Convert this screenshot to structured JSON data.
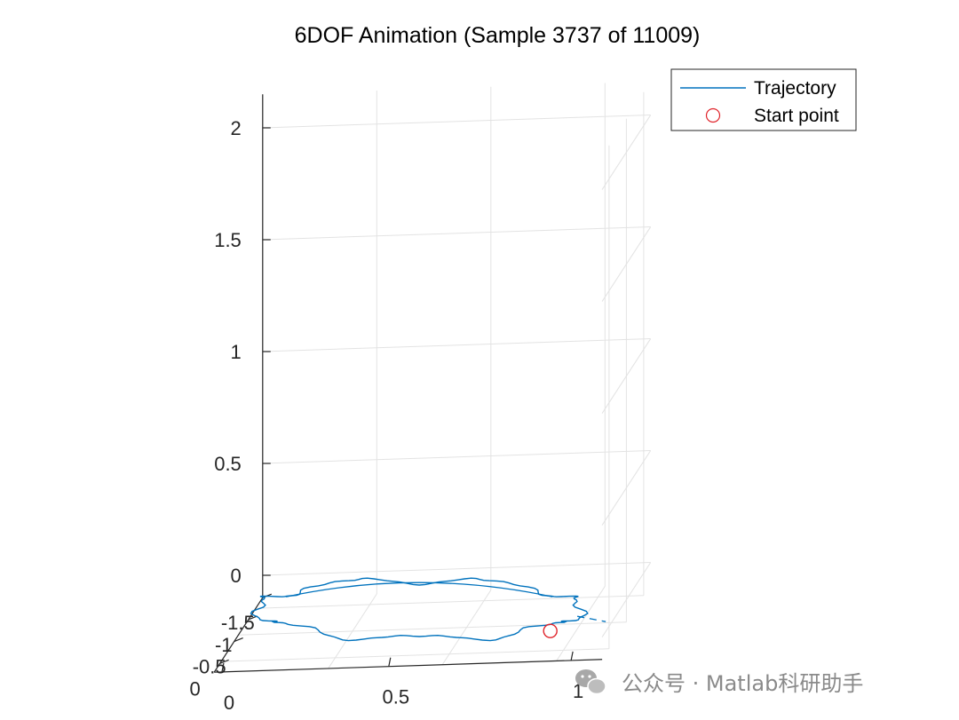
{
  "chart_data": {
    "type": "line",
    "dimension": "3d",
    "title": "6DOF Animation (Sample 3737 of 11009)",
    "xlabel": "",
    "ylabel": "",
    "zlabel": "",
    "x_axis": {
      "range": [
        -1.5,
        0.2
      ],
      "ticks": [
        -1.5,
        -1,
        -0.5,
        0
      ],
      "tick_labels": [
        "-1.5",
        "-1",
        "-0.5",
        "0"
      ]
    },
    "y_axis": {
      "range": [
        -0.2,
        1.2
      ],
      "ticks": [
        0,
        0.5,
        1
      ],
      "tick_labels": [
        "0",
        "0.5",
        "1"
      ]
    },
    "z_axis": {
      "range": [
        -0.1,
        2.15
      ],
      "ticks": [
        0,
        0.5,
        1,
        1.5,
        2
      ],
      "tick_labels": [
        "0",
        "0.5",
        "1",
        "1.5",
        "2"
      ]
    },
    "grid": true,
    "legend": {
      "placement": "top-right",
      "entries": [
        "Trajectory",
        "Start point"
      ]
    },
    "series": [
      {
        "name": "Trajectory",
        "style": "line",
        "color": "#0072bd",
        "note": "approximately circular horizontal loop near z = 0",
        "center": {
          "x": -0.7,
          "y": 0.55
        },
        "radius": 0.62,
        "z": 0.0
      },
      {
        "name": "Start point",
        "style": "marker",
        "marker": "circle",
        "color": "#e0242b",
        "point": {
          "x": -0.05,
          "y": 1.05,
          "z": 0.0
        }
      }
    ]
  },
  "watermark": {
    "text": "公众号 · Matlab科研助手",
    "icon": "wechat-icon"
  }
}
